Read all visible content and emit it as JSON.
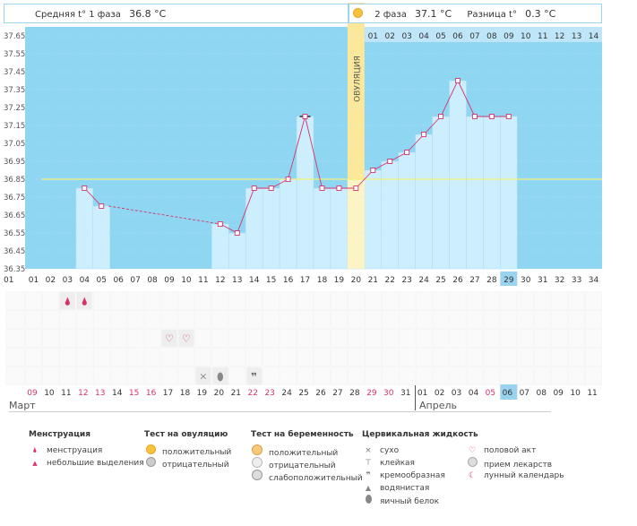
{
  "header": {
    "unit": "°C",
    "phase1_label": "Средняя t° 1 фаза",
    "phase1_value": "36.8 °C",
    "phase2_label": "2 фаза",
    "phase2_value": "37.1 °C",
    "diff_label": "Разница t°",
    "diff_value": "0.3 °C",
    "ovulation_label": "ОВУЛЯЦИЯ"
  },
  "chart_data": {
    "type": "line",
    "ylim": [
      36.35,
      37.7
    ],
    "yticks": [
      "37.65",
      "37.55",
      "37.45",
      "37.35",
      "37.25",
      "37.15",
      "37.05",
      "36.95",
      "36.85",
      "36.75",
      "36.65",
      "36.55",
      "36.45",
      "36.35"
    ],
    "cycle_days": [
      "01",
      "02",
      "03",
      "04",
      "05",
      "06",
      "07",
      "08",
      "09",
      "10",
      "11",
      "12",
      "13",
      "14",
      "15",
      "16",
      "17",
      "18",
      "19",
      "20",
      "21",
      "22",
      "23",
      "24",
      "25",
      "26",
      "27",
      "28",
      "29",
      "30",
      "31",
      "32",
      "33",
      "34"
    ],
    "phase2_days": [
      "01",
      "02",
      "03",
      "04",
      "05",
      "06",
      "07",
      "08",
      "09",
      "10",
      "11",
      "12",
      "13",
      "14"
    ],
    "dates": [
      "09",
      "10",
      "11",
      "12",
      "13",
      "14",
      "15",
      "16",
      "17",
      "18",
      "19",
      "20",
      "21",
      "22",
      "23",
      "24",
      "25",
      "26",
      "27",
      "28",
      "29",
      "30",
      "31",
      "01",
      "02",
      "03",
      "04",
      "05",
      "06",
      "07",
      "08",
      "09",
      "10",
      "11"
    ],
    "red_date_indexes": [
      0,
      3,
      4,
      6,
      7,
      13,
      14,
      20,
      21,
      27
    ],
    "highlight_day": "29",
    "highlight_date": "06",
    "ovulation_day": 20,
    "coverline": 36.85,
    "temps": [
      {
        "day": 4,
        "t": 36.8
      },
      {
        "day": 5,
        "t": 36.7
      },
      {
        "day": 12,
        "t": 36.6
      },
      {
        "day": 13,
        "t": 36.55
      },
      {
        "day": 14,
        "t": 36.8
      },
      {
        "day": 15,
        "t": 36.8
      },
      {
        "day": 16,
        "t": 36.85
      },
      {
        "day": 17,
        "t": 37.2
      },
      {
        "day": 18,
        "t": 36.8
      },
      {
        "day": 19,
        "t": 36.8
      },
      {
        "day": 20,
        "t": 36.8
      },
      {
        "day": 21,
        "t": 36.9
      },
      {
        "day": 22,
        "t": 36.95
      },
      {
        "day": 23,
        "t": 37.0
      },
      {
        "day": 24,
        "t": 37.1
      },
      {
        "day": 25,
        "t": 37.2
      },
      {
        "day": 26,
        "t": 37.4
      },
      {
        "day": 27,
        "t": 37.2
      },
      {
        "day": 28,
        "t": 37.2
      },
      {
        "day": 29,
        "t": 37.2
      }
    ],
    "dashed_segment": [
      5,
      12
    ],
    "marked_day": 17,
    "markers": [
      {
        "day": 4,
        "row": 0,
        "icon": "drop-small-icon"
      },
      {
        "day": 5,
        "row": 0,
        "icon": "drop-small-icon"
      },
      {
        "day": 10,
        "row": 2,
        "icon": "heart-icon"
      },
      {
        "day": 11,
        "row": 2,
        "icon": "heart-icon"
      },
      {
        "day": 12,
        "row": 4,
        "icon": "dry-icon"
      },
      {
        "day": 13,
        "row": 4,
        "icon": "eggwhite-icon"
      },
      {
        "day": 15,
        "row": 4,
        "icon": "creamy-icon"
      }
    ]
  },
  "months": {
    "march": "Март",
    "april": "Апрель"
  },
  "legend": {
    "menstruation": {
      "title": "Менструация",
      "items": [
        "менструация",
        "небольшие выделения"
      ]
    },
    "ovulation_test": {
      "title": "Тест на овуляцию",
      "items": [
        "положительный",
        "отрицательный"
      ]
    },
    "pregnancy_test": {
      "title": "Тест на беременность",
      "items": [
        "положительный",
        "отрицательный",
        "слабоположительный"
      ]
    },
    "cervical": {
      "title": "Цервикальная жидкость",
      "items": [
        "сухо",
        "клейкая",
        "кремообразная",
        "водянистая",
        "яичный белок"
      ]
    },
    "other": {
      "items": [
        "половой акт",
        "прием лекарств",
        "лунный календарь"
      ]
    }
  },
  "colors": {
    "plot_bg": "#8fd6f2",
    "bar": "#cdeefd",
    "line": "#d6336c",
    "ovulation": "#fbe89a",
    "coverline": "#f3f07a",
    "red_date": "#d6336c",
    "highlight": "#9ad3ef"
  }
}
